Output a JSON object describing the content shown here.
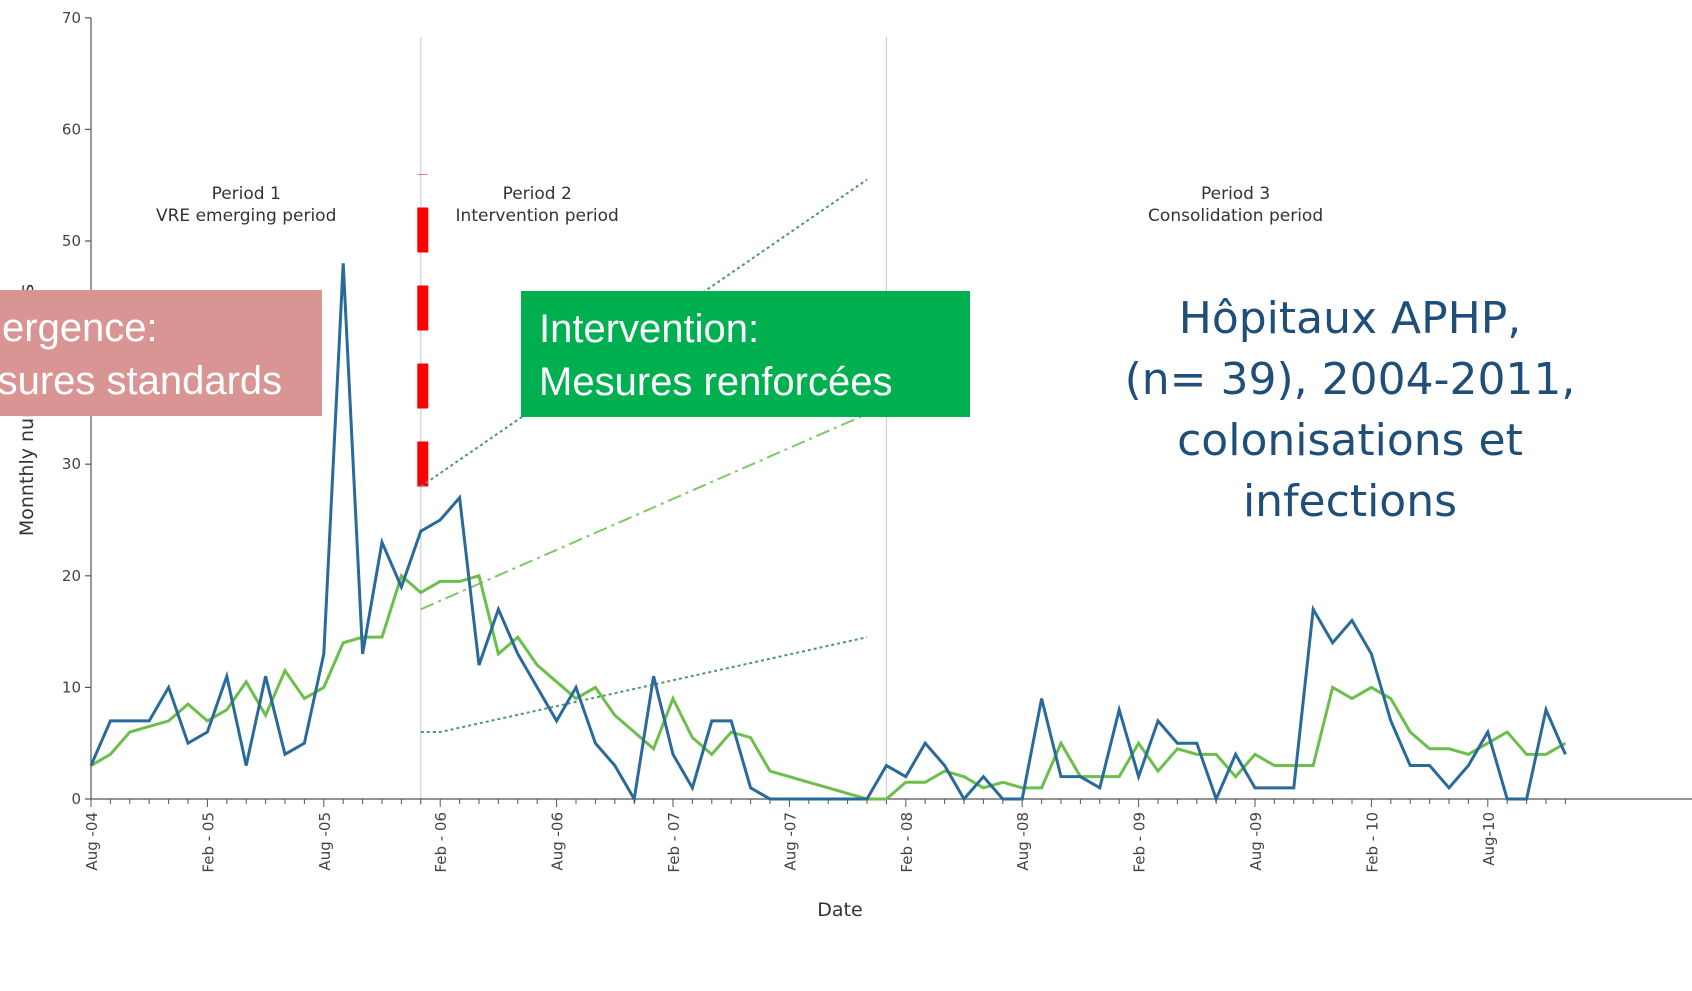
{
  "chart_data": {
    "type": "line",
    "title": "",
    "xlabel": "Date",
    "ylabel": "Monnthly number of cases",
    "ylim": [
      0,
      70
    ],
    "yticks": [
      0,
      10,
      20,
      30,
      40,
      50,
      60,
      70
    ],
    "x_tick_labels": [
      "Aug -04",
      "Feb - 05",
      "Aug -05",
      "Feb - 06",
      "Aug -06",
      "Feb - 07",
      "Aug -07",
      "Feb - 08",
      "Aug -08",
      "Feb - 09",
      "Aug -09",
      "Feb - 10",
      "Aug-10"
    ],
    "x_tick_dates": [
      "2004-08",
      "2005-02",
      "2005-08",
      "2006-02",
      "2006-08",
      "2007-02",
      "2007-08",
      "2008-02",
      "2008-08",
      "2009-02",
      "2009-08",
      "2010-02",
      "2010-08"
    ],
    "grid": false,
    "series": [
      {
        "color": "#2a6a9a",
        "points": [
          [
            "2004-08",
            3
          ],
          [
            "2004-09",
            7
          ],
          [
            "2004-10",
            7
          ],
          [
            "2004-11",
            7
          ],
          [
            "2004-12",
            10
          ],
          [
            "2005-01",
            5
          ],
          [
            "2005-02",
            6
          ],
          [
            "2005-03",
            11
          ],
          [
            "2005-04",
            3
          ],
          [
            "2005-05",
            11
          ],
          [
            "2005-06",
            4
          ],
          [
            "2005-07",
            5
          ],
          [
            "2005-08",
            13
          ],
          [
            "2005-09",
            48
          ],
          [
            "2005-10",
            13
          ],
          [
            "2005-11",
            23
          ],
          [
            "2005-12",
            19
          ],
          [
            "2006-01",
            24
          ],
          [
            "2006-02",
            25
          ],
          [
            "2006-03",
            27
          ],
          [
            "2006-04",
            12
          ],
          [
            "2006-05",
            17
          ],
          [
            "2006-06",
            13
          ],
          [
            "2006-07",
            10
          ],
          [
            "2006-08",
            7
          ],
          [
            "2006-09",
            10
          ],
          [
            "2006-10",
            5
          ],
          [
            "2006-11",
            3
          ],
          [
            "2006-12",
            0
          ],
          [
            "2007-01",
            11
          ],
          [
            "2007-02",
            4
          ],
          [
            "2007-03",
            1
          ],
          [
            "2007-04",
            7
          ],
          [
            "2007-05",
            7
          ],
          [
            "2007-06",
            1
          ],
          [
            "2007-07",
            0
          ],
          [
            "2007-08",
            0
          ],
          [
            "2007-09",
            0
          ],
          [
            "2007-10",
            0
          ],
          [
            "2007-11",
            0
          ],
          [
            "2007-12",
            0
          ],
          [
            "2008-01",
            3
          ],
          [
            "2008-02",
            2
          ],
          [
            "2008-03",
            5
          ],
          [
            "2008-04",
            3
          ],
          [
            "2008-05",
            0
          ],
          [
            "2008-06",
            2
          ],
          [
            "2008-07",
            0
          ],
          [
            "2008-08",
            0
          ],
          [
            "2008-09",
            9
          ],
          [
            "2008-10",
            2
          ],
          [
            "2008-11",
            2
          ],
          [
            "2008-12",
            1
          ],
          [
            "2009-01",
            8
          ],
          [
            "2009-02",
            2
          ],
          [
            "2009-03",
            7
          ],
          [
            "2009-04",
            5
          ],
          [
            "2009-05",
            5
          ],
          [
            "2009-06",
            0
          ],
          [
            "2009-07",
            4
          ],
          [
            "2009-08",
            1
          ],
          [
            "2009-09",
            1
          ],
          [
            "2009-10",
            1
          ],
          [
            "2009-11",
            17
          ],
          [
            "2009-12",
            14
          ],
          [
            "2010-01",
            16
          ],
          [
            "2010-02",
            13
          ],
          [
            "2010-03",
            7
          ],
          [
            "2010-04",
            3
          ],
          [
            "2010-05",
            3
          ],
          [
            "2010-06",
            1
          ],
          [
            "2010-07",
            3
          ],
          [
            "2010-08",
            6
          ],
          [
            "2010-09",
            0
          ],
          [
            "2010-10",
            0
          ],
          [
            "2010-11",
            8
          ],
          [
            "2010-12",
            4
          ]
        ]
      },
      {
        "color": "#6cbf4a",
        "points": [
          [
            "2004-08",
            3
          ],
          [
            "2004-09",
            4
          ],
          [
            "2004-10",
            6
          ],
          [
            "2004-11",
            6.5
          ],
          [
            "2004-12",
            7
          ],
          [
            "2005-01",
            8.5
          ],
          [
            "2005-02",
            7
          ],
          [
            "2005-03",
            8
          ],
          [
            "2005-04",
            10.5
          ],
          [
            "2005-05",
            7.5
          ],
          [
            "2005-06",
            11.5
          ],
          [
            "2005-07",
            9
          ],
          [
            "2005-08",
            10
          ],
          [
            "2005-09",
            14
          ],
          [
            "2005-10",
            14.5
          ],
          [
            "2005-11",
            14.5
          ],
          [
            "2005-12",
            20
          ],
          [
            "2006-01",
            18.5
          ],
          [
            "2006-02",
            19.5
          ],
          [
            "2006-03",
            19.5
          ],
          [
            "2006-04",
            20
          ],
          [
            "2006-05",
            13
          ],
          [
            "2006-06",
            14.5
          ],
          [
            "2006-07",
            12
          ],
          [
            "2006-08",
            10.5
          ],
          [
            "2006-09",
            9
          ],
          [
            "2006-10",
            10
          ],
          [
            "2006-11",
            7.5
          ],
          [
            "2006-12",
            6
          ],
          [
            "2007-01",
            4.5
          ],
          [
            "2007-02",
            9
          ],
          [
            "2007-03",
            5.5
          ],
          [
            "2007-04",
            4
          ],
          [
            "2007-05",
            6
          ],
          [
            "2007-06",
            5.5
          ],
          [
            "2007-07",
            2.5
          ],
          [
            "2007-08",
            2
          ],
          [
            "2007-09",
            1.5
          ],
          [
            "2007-10",
            1
          ],
          [
            "2007-11",
            0.5
          ],
          [
            "2007-12",
            0
          ],
          [
            "2008-01",
            0
          ],
          [
            "2008-02",
            1.5
          ],
          [
            "2008-03",
            1.5
          ],
          [
            "2008-04",
            2.5
          ],
          [
            "2008-05",
            2
          ],
          [
            "2008-06",
            1
          ],
          [
            "2008-07",
            1.5
          ],
          [
            "2008-08",
            1
          ],
          [
            "2008-09",
            1
          ],
          [
            "2008-10",
            5
          ],
          [
            "2008-11",
            2
          ],
          [
            "2008-12",
            2
          ],
          [
            "2009-01",
            2
          ],
          [
            "2009-02",
            5
          ],
          [
            "2009-03",
            2.5
          ],
          [
            "2009-04",
            4.5
          ],
          [
            "2009-05",
            4
          ],
          [
            "2009-06",
            4
          ],
          [
            "2009-07",
            2
          ],
          [
            "2009-08",
            4
          ],
          [
            "2009-09",
            3
          ],
          [
            "2009-10",
            3
          ],
          [
            "2009-11",
            3
          ],
          [
            "2009-12",
            10
          ],
          [
            "2010-01",
            9
          ],
          [
            "2010-02",
            10
          ],
          [
            "2010-03",
            9
          ],
          [
            "2010-04",
            6
          ],
          [
            "2010-05",
            4.5
          ],
          [
            "2010-06",
            4.5
          ],
          [
            "2010-07",
            4
          ],
          [
            "2010-08",
            5
          ],
          [
            "2010-09",
            6
          ],
          [
            "2010-10",
            4
          ],
          [
            "2010-11",
            4
          ],
          [
            "2010-12",
            5
          ]
        ]
      }
    ],
    "trend_lines": [
      {
        "style": "dotted",
        "color": "#4c9a6a",
        "points": [
          [
            "2006-01",
            28
          ],
          [
            "2007-12",
            55.5
          ]
        ]
      },
      {
        "style": "dash-dot",
        "color": "#7cc96a",
        "points": [
          [
            "2006-01",
            17
          ],
          [
            "2007-12",
            34.5
          ]
        ]
      },
      {
        "style": "dotted",
        "color": "#4c9a6a",
        "points": [
          [
            "2006-01",
            6
          ],
          [
            "2006-02",
            6
          ],
          [
            "2007-12",
            14.5
          ]
        ]
      }
    ],
    "vertical_markers": [
      {
        "date": "2006-01",
        "style": "solid",
        "color": "#cfcfcf"
      },
      {
        "date": "2008-01",
        "style": "solid",
        "color": "#cfcfcf"
      },
      {
        "date": "2006-01",
        "style": "dashed",
        "color": "#ff0000",
        "from": 28,
        "to": 56
      }
    ],
    "period_labels": [
      {
        "date": "2005-04",
        "lines": [
          "Period 1",
          "VRE emerging period"
        ]
      },
      {
        "date": "2006-07",
        "lines": [
          "Period 2",
          "Intervention period"
        ]
      },
      {
        "date": "2009-07",
        "lines": [
          "Period 3",
          "Consolidation period"
        ]
      }
    ]
  },
  "annotations": {
    "emergence_box": {
      "lines": [
        "Emergence:",
        "Mesures standards"
      ],
      "color": "#d99594"
    },
    "intervention_box": {
      "lines": [
        "Intervention:",
        "Mesures renforcées"
      ],
      "color": "#00b050"
    },
    "hospital_note": {
      "lines": [
        "Hôpitaux APHP,",
        "(n= 39), 2004-2011,",
        "colonisations et",
        "infections"
      ],
      "color": "#1f4e79"
    }
  }
}
